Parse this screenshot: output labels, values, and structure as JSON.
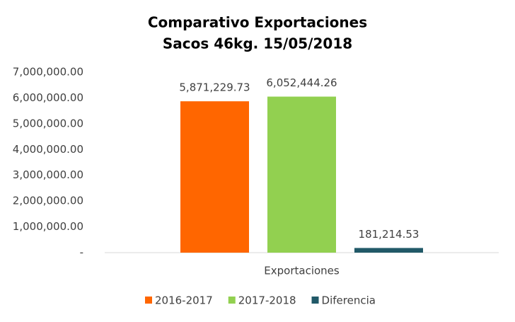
{
  "chart_data": {
    "type": "bar",
    "title": "Comparativo Exportaciones",
    "subtitle": "Sacos 46kg. 15/05/2018",
    "categories": [
      "Exportaciones"
    ],
    "series": [
      {
        "name": "2016-2017",
        "color": "#ff6600",
        "values": [
          5871229.73
        ],
        "value_labels": [
          "5,871,229.73"
        ]
      },
      {
        "name": "2017-2018",
        "color": "#92d050",
        "values": [
          6052444.26
        ],
        "value_labels": [
          "6,052,444.26"
        ]
      },
      {
        "name": "Diferencia",
        "color": "#215968",
        "values": [
          181214.53
        ],
        "value_labels": [
          "181,214.53"
        ]
      }
    ],
    "ylim": [
      0,
      7000000
    ],
    "yticks": [
      {
        "value": 0,
        "label": "-"
      },
      {
        "value": 1000000,
        "label": "1,000,000.00"
      },
      {
        "value": 2000000,
        "label": "2,000,000.00"
      },
      {
        "value": 3000000,
        "label": "3,000,000.00"
      },
      {
        "value": 4000000,
        "label": "4,000,000.00"
      },
      {
        "value": 5000000,
        "label": "5,000,000.00"
      },
      {
        "value": 6000000,
        "label": "6,000,000.00"
      },
      {
        "value": 7000000,
        "label": "7,000,000.00"
      }
    ],
    "grid": false,
    "legend": "bottom"
  }
}
